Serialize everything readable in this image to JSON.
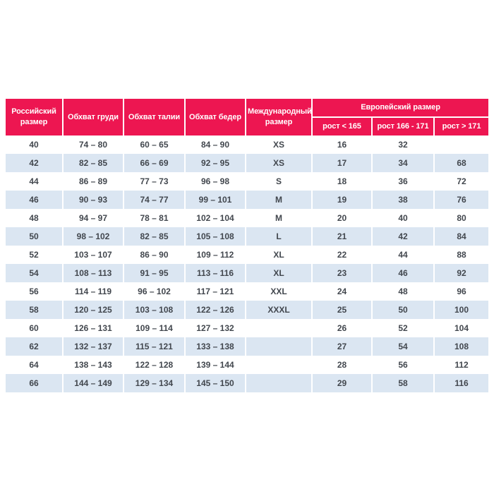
{
  "style": {
    "header_bg": "#ed1651",
    "header_text": "#ffffff",
    "stripe_bg": "#dbe6f2",
    "row_bg": "#ffffff",
    "cell_text": "#42474e",
    "page_bg": "#ffffff"
  },
  "chart_data": {
    "type": "table",
    "title": "",
    "header": {
      "main_columns": [
        "Российский размер",
        "Обхват груди",
        "Обхват талии",
        "Обхват бедер",
        "Международный размер"
      ],
      "group_label": "Европейский размер",
      "group_subcolumns": [
        "рост < 165",
        "рост 166 - 171",
        "рост > 171"
      ]
    },
    "rows": [
      [
        "40",
        "74 – 80",
        "60 – 65",
        "84 – 90",
        "XS",
        "16",
        "32",
        ""
      ],
      [
        "42",
        "82 – 85",
        "66 – 69",
        "92 – 95",
        "XS",
        "17",
        "34",
        "68"
      ],
      [
        "44",
        "86 – 89",
        "77 – 73",
        "96 – 98",
        "S",
        "18",
        "36",
        "72"
      ],
      [
        "46",
        "90 – 93",
        "74 – 77",
        "99 – 101",
        "M",
        "19",
        "38",
        "76"
      ],
      [
        "48",
        "94 – 97",
        "78 – 81",
        "102 – 104",
        "M",
        "20",
        "40",
        "80"
      ],
      [
        "50",
        "98 – 102",
        "82 – 85",
        "105 – 108",
        "L",
        "21",
        "42",
        "84"
      ],
      [
        "52",
        "103 – 107",
        "86 – 90",
        "109 – 112",
        "XL",
        "22",
        "44",
        "88"
      ],
      [
        "54",
        "108 – 113",
        "91 – 95",
        "113 – 116",
        "XL",
        "23",
        "46",
        "92"
      ],
      [
        "56",
        "114 – 119",
        "96 – 102",
        "117 – 121",
        "XXL",
        "24",
        "48",
        "96"
      ],
      [
        "58",
        "120 – 125",
        "103 – 108",
        "122 – 126",
        "XXXL",
        "25",
        "50",
        "100"
      ],
      [
        "60",
        "126 – 131",
        "109 – 114",
        "127 – 132",
        "",
        "26",
        "52",
        "104"
      ],
      [
        "62",
        "132 – 137",
        "115 – 121",
        "133 – 138",
        "",
        "27",
        "54",
        "108"
      ],
      [
        "64",
        "138 – 143",
        "122 – 128",
        "139 – 144",
        "",
        "28",
        "56",
        "112"
      ],
      [
        "66",
        "144 – 149",
        "129 – 134",
        "145 – 150",
        "",
        "29",
        "58",
        "116"
      ]
    ]
  }
}
